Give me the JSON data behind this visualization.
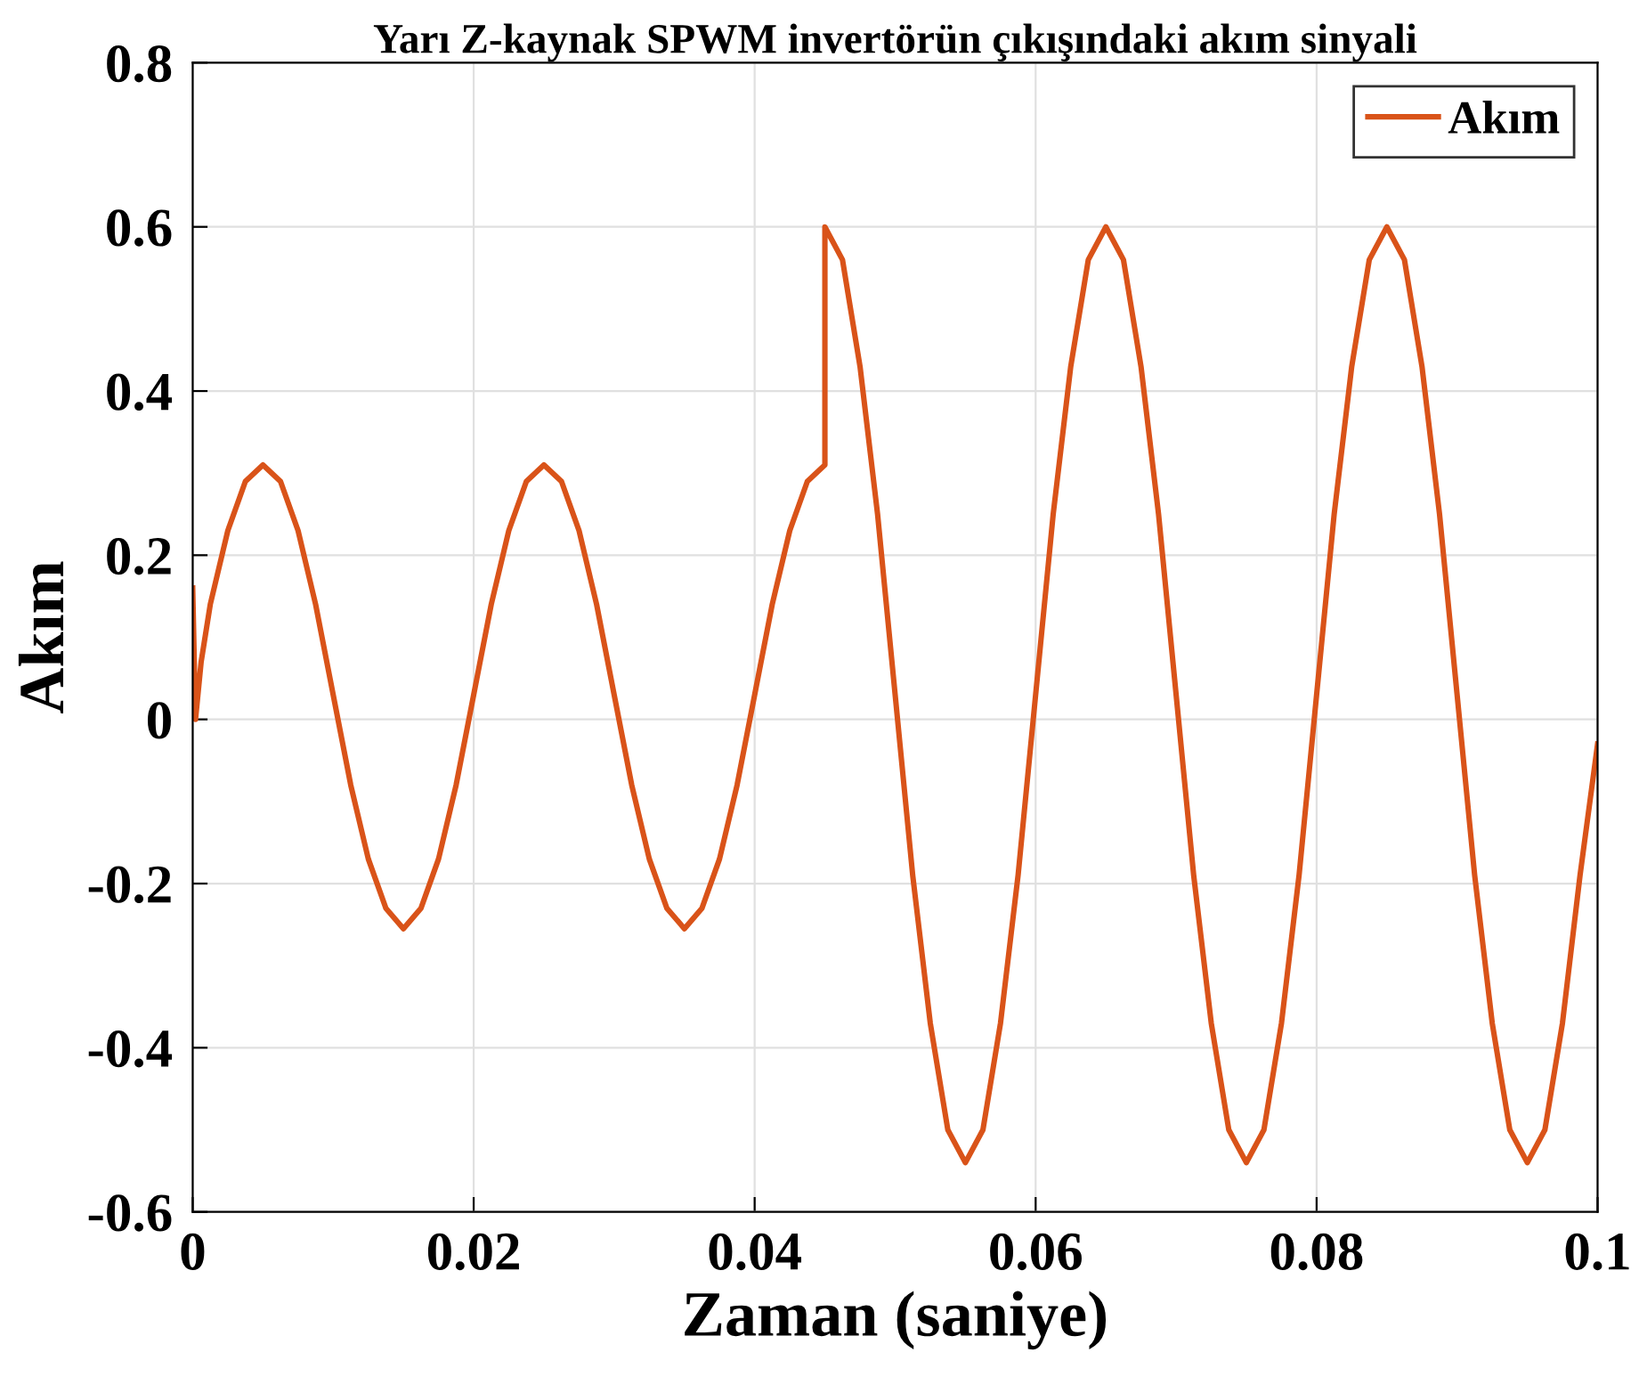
{
  "chart_data": {
    "type": "line",
    "title": "Yarı Z-kaynak SPWM invertörün çıkışındaki akım sinyali",
    "xlabel": "Zaman (saniye)",
    "ylabel": "Akım",
    "xlim": [
      0,
      0.1
    ],
    "xticks": [
      0,
      0.02,
      0.04,
      0.06,
      0.08,
      0.1
    ],
    "ylim": [
      -0.6,
      0.8
    ],
    "yticks": [
      -0.6,
      -0.4,
      -0.2,
      0,
      0.2,
      0.4,
      0.6,
      0.8
    ],
    "grid": true,
    "legend": "top right",
    "marker": "none",
    "line_style": "solid",
    "series": [
      {
        "name": "Akım",
        "color": "#d95319",
        "x": [
          0,
          0.0002,
          0.0006,
          0.00125,
          0.0025,
          0.00375,
          0.005,
          0.00625,
          0.0075,
          0.00875,
          0.01,
          0.01125,
          0.0125,
          0.01375,
          0.015,
          0.01625,
          0.0175,
          0.01875,
          0.02,
          0.02125,
          0.0225,
          0.02375,
          0.025,
          0.02625,
          0.0275,
          0.02875,
          0.03,
          0.03125,
          0.0325,
          0.03375,
          0.035,
          0.03625,
          0.0375,
          0.03875,
          0.04,
          0.04125,
          0.0425,
          0.04375,
          0.045,
          0.045,
          0.04625,
          0.0475,
          0.04875,
          0.05,
          0.05125,
          0.0525,
          0.05375,
          0.055,
          0.05625,
          0.0575,
          0.05875,
          0.06,
          0.06125,
          0.0625,
          0.06375,
          0.065,
          0.06625,
          0.0675,
          0.06875,
          0.07,
          0.07125,
          0.0725,
          0.07375,
          0.075,
          0.07625,
          0.0775,
          0.07875,
          0.08,
          0.08125,
          0.0825,
          0.08375,
          0.085,
          0.08625,
          0.0875,
          0.08875,
          0.09,
          0.09125,
          0.0925,
          0.09375,
          0.095,
          0.09625,
          0.0975,
          0.09875,
          0.1
        ],
        "values": [
          0.16,
          0,
          0.07,
          0.14,
          0.23,
          0.29,
          0.31,
          0.29,
          0.23,
          0.14,
          0.03,
          -0.08,
          -0.17,
          -0.23,
          -0.255,
          -0.23,
          -0.17,
          -0.08,
          0.03,
          0.14,
          0.23,
          0.29,
          0.31,
          0.29,
          0.23,
          0.14,
          0.03,
          -0.08,
          -0.17,
          -0.23,
          -0.255,
          -0.23,
          -0.17,
          -0.08,
          0.03,
          0.14,
          0.23,
          0.29,
          0.31,
          0.6,
          0.56,
          0.43,
          0.25,
          0.03,
          -0.19,
          -0.37,
          -0.5,
          -0.54,
          -0.5,
          -0.37,
          -0.19,
          0.03,
          0.25,
          0.43,
          0.56,
          0.6,
          0.56,
          0.43,
          0.25,
          0.03,
          -0.19,
          -0.37,
          -0.5,
          -0.54,
          -0.5,
          -0.37,
          -0.19,
          0.03,
          0.25,
          0.43,
          0.56,
          0.6,
          0.56,
          0.43,
          0.25,
          0.03,
          -0.19,
          -0.37,
          -0.5,
          -0.54,
          -0.5,
          -0.37,
          -0.19,
          -0.03
        ]
      }
    ]
  }
}
